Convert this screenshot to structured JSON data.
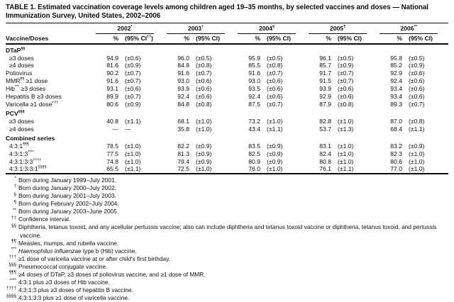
{
  "title": "TABLE 1. Estimated vaccination coverage levels among children aged 19–35 months, by selected vaccines and doses — National Immunization Survey, United States, 2002–2006",
  "table": {
    "label_header": "Vaccine/Doses",
    "years": [
      {
        "year": "2002",
        "sup": "*",
        "pct": "%",
        "ci_pre": "(95% CI",
        "ci_sup": "††",
        "ci_post": ")"
      },
      {
        "year": "2003",
        "sup": "†",
        "pct": "%",
        "ci_pre": "(95% CI",
        "ci_sup": "",
        "ci_post": ")"
      },
      {
        "year": "2004",
        "sup": "§",
        "pct": "%",
        "ci_pre": "(95% CI",
        "ci_sup": "",
        "ci_post": ")"
      },
      {
        "year": "2005",
        "sup": "¶",
        "pct": "%",
        "ci_pre": "(95% CI",
        "ci_sup": "",
        "ci_post": ")"
      },
      {
        "year": "2006",
        "sup": "**",
        "pct": "%",
        "ci_pre": "(95% CI",
        "ci_sup": "",
        "ci_post": ")"
      }
    ],
    "rows": [
      {
        "type": "section",
        "pre": "DTaP",
        "sup": "§§",
        "post": ""
      },
      {
        "type": "data",
        "indent": 1,
        "pre": "≥3 doses",
        "sup": "",
        "post": "",
        "values": [
          [
            "94.9",
            "(±0.6)"
          ],
          [
            "96.0",
            "(±0.5)"
          ],
          [
            "95.9",
            "(±0.5)"
          ],
          [
            "96.1",
            "(±0.5)"
          ],
          [
            "95.8",
            "(±0.5)"
          ]
        ]
      },
      {
        "type": "data",
        "indent": 1,
        "pre": "≥4 doses",
        "sup": "",
        "post": "",
        "values": [
          [
            "81.6",
            "(±0.9)"
          ],
          [
            "84.8",
            "(±0.8)"
          ],
          [
            "85.5",
            "(±0.8)"
          ],
          [
            "85.7",
            "(±0.9)"
          ],
          [
            "85.2",
            "(±0.9)"
          ]
        ]
      },
      {
        "type": "data",
        "indent": 0,
        "pre": "Poliovirus",
        "sup": "",
        "post": "",
        "values": [
          [
            "90.2",
            "(±0.7)"
          ],
          [
            "91.6",
            "(±0.7)"
          ],
          [
            "91.6",
            "(±0.7)"
          ],
          [
            "91.7",
            "(±0.7)"
          ],
          [
            "92.9",
            "(±0.6)"
          ]
        ]
      },
      {
        "type": "data",
        "indent": 0,
        "pre": "MMR",
        "sup": "¶¶",
        "post": " ≥1 dose",
        "values": [
          [
            "91.6",
            "(±0.7)"
          ],
          [
            "93.0",
            "(±0.6)"
          ],
          [
            "93.0",
            "(±0.6)"
          ],
          [
            "91.5",
            "(±0.7)"
          ],
          [
            "92.4",
            "(±0.6)"
          ]
        ]
      },
      {
        "type": "data",
        "indent": 0,
        "pre": "Hib",
        "sup": "***",
        "post": " ≥3 doses",
        "values": [
          [
            "93.1",
            "(±0.6)"
          ],
          [
            "93.9",
            "(±0.6)"
          ],
          [
            "93.5",
            "(±0.6)"
          ],
          [
            "93.9",
            "(±0.6)"
          ],
          [
            "93.4",
            "(±0.6)"
          ]
        ]
      },
      {
        "type": "data",
        "indent": 0,
        "pre": "Hepatitis B ≥3 doses",
        "sup": "",
        "post": "",
        "values": [
          [
            "89.9",
            "(±0.7)"
          ],
          [
            "92.4",
            "(±0.6)"
          ],
          [
            "92.4",
            "(±0.6)"
          ],
          [
            "92.9",
            "(±0.6)"
          ],
          [
            "93.4",
            "(±0.6)"
          ]
        ]
      },
      {
        "type": "data",
        "indent": 0,
        "pre": "Varicella ≥1 dose",
        "sup": "†††",
        "post": "",
        "values": [
          [
            "80.6",
            "(±0.9)"
          ],
          [
            "84.8",
            "(±0.8)"
          ],
          [
            "87.5",
            "(±0.7)"
          ],
          [
            "87.9",
            "(±0.8)"
          ],
          [
            "89.3",
            "(±0.7)"
          ]
        ]
      },
      {
        "type": "section",
        "pre": "PCV",
        "sup": "§§§",
        "post": ""
      },
      {
        "type": "data",
        "indent": 1,
        "pre": "≥3 doses",
        "sup": "",
        "post": "",
        "values": [
          [
            "40.8",
            "(±1.1)"
          ],
          [
            "68.1",
            "(±1.0)"
          ],
          [
            "73.2",
            "(±1.0)"
          ],
          [
            "82.8",
            "(±1.0)"
          ],
          [
            "87.0",
            "(±0.8)"
          ]
        ]
      },
      {
        "type": "data",
        "indent": 1,
        "pre": "≥4 doses",
        "sup": "",
        "post": "",
        "values": [
          [
            "—",
            "—"
          ],
          [
            "35.8",
            "(±1.0)"
          ],
          [
            "43.4",
            "(±1.1)"
          ],
          [
            "53.7",
            "(±1.3)"
          ],
          [
            "68.4",
            "(±1.1)"
          ]
        ]
      },
      {
        "type": "section",
        "pre": "Combined series",
        "sup": "",
        "post": ""
      },
      {
        "type": "data",
        "indent": 1,
        "pre": "4:3:1",
        "sup": "¶¶¶",
        "post": "",
        "values": [
          [
            "78.5",
            "(±1.0)"
          ],
          [
            "82.2",
            "(±0.9)"
          ],
          [
            "83.5",
            "(±0.9)"
          ],
          [
            "83.1",
            "(±1.0)"
          ],
          [
            "83.2",
            "(±0.9)"
          ]
        ]
      },
      {
        "type": "data",
        "indent": 1,
        "pre": "4:3:1:3",
        "sup": "****",
        "post": "",
        "values": [
          [
            "77.5",
            "(±1.0)"
          ],
          [
            "81.3",
            "(±0.9)"
          ],
          [
            "82.5",
            "(±0.9)"
          ],
          [
            "82.4",
            "(±1.0)"
          ],
          [
            "82.3",
            "(±1.0)"
          ]
        ]
      },
      {
        "type": "data",
        "indent": 1,
        "pre": "4:3:1:3:3",
        "sup": "††††",
        "post": "",
        "values": [
          [
            "74.8",
            "(±1.0)"
          ],
          [
            "79.4",
            "(±0.9)"
          ],
          [
            "80.9",
            "(±0.9)"
          ],
          [
            "80.8",
            "(±1.0)"
          ],
          [
            "80.6",
            "(±1.0)"
          ]
        ]
      },
      {
        "type": "data",
        "indent": 1,
        "pre": "4:3:1:3:3:1",
        "sup": "§§§§",
        "post": "",
        "values": [
          [
            "65.5",
            "(±1.1)"
          ],
          [
            "72.5",
            "(±1.0)"
          ],
          [
            "76.0",
            "(±1.0)"
          ],
          [
            "76.1",
            "(±1.1)"
          ],
          [
            "77.0",
            "(±1.0)"
          ]
        ]
      }
    ]
  },
  "footnotes": [
    {
      "sup": "*",
      "text": "Born during January 1999–July 2001.",
      "italic": "",
      "text2": ""
    },
    {
      "sup": "†",
      "text": "Born during January 2000–July 2002.",
      "italic": "",
      "text2": ""
    },
    {
      "sup": "§",
      "text": "Born during January 2001–July 2003.",
      "italic": "",
      "text2": ""
    },
    {
      "sup": "¶",
      "text": "Born during February 2002–July 2004.",
      "italic": "",
      "text2": ""
    },
    {
      "sup": "**",
      "text": "Born during January 2003–June 2005.",
      "italic": "",
      "text2": ""
    },
    {
      "sup": "††",
      "text": "Confidence interval.",
      "italic": "",
      "text2": ""
    },
    {
      "sup": "§§",
      "text": "Diphtheria, tetanus toxoid, and any acellular pertussis vaccine; also can include diphtheria and tetanus toxoid vaccine or diphtheria, tetanus toxoid, and pertussis vaccine.",
      "italic": "",
      "text2": ""
    },
    {
      "sup": "¶¶",
      "text": "Measles, mumps, and rubella vaccine.",
      "italic": "",
      "text2": ""
    },
    {
      "sup": "***",
      "text": "",
      "italic": "Haemophilus influenzae",
      "text2": " type b (Hib) vaccine."
    },
    {
      "sup": "†††",
      "text": "≥1 dose of varicella vaccine at or after child's first birthday.",
      "italic": "",
      "text2": ""
    },
    {
      "sup": "§§§",
      "text": "Pneumococcal conjugate vaccine.",
      "italic": "",
      "text2": ""
    },
    {
      "sup": "¶¶¶",
      "text": "≥4 doses of DTaP, ≥3 doses of poliovirus vaccine, and ≥1 dose of MMR.",
      "italic": "",
      "text2": ""
    },
    {
      "sup": "****",
      "text": "4:3:1 plus ≥3 doses of Hib vaccine.",
      "italic": "",
      "text2": ""
    },
    {
      "sup": "††††",
      "text": "4:3:1:3 plus ≥3 doses of hepatitis B vaccine.",
      "italic": "",
      "text2": ""
    },
    {
      "sup": "§§§§",
      "text": "4:3:1:3:3 plus ≥1 dose of varicella vaccine.",
      "italic": "",
      "text2": ""
    }
  ]
}
